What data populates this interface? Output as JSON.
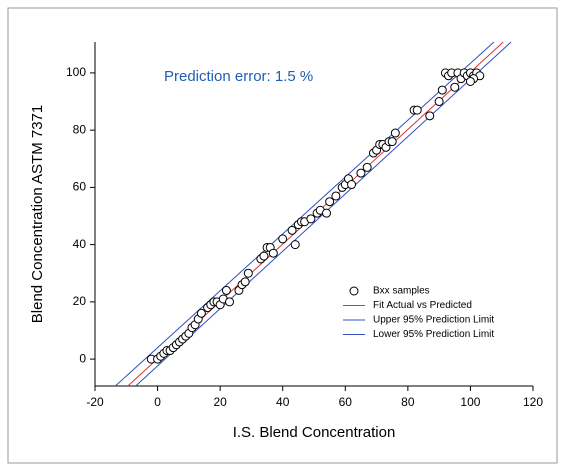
{
  "chart_data": {
    "type": "scatter",
    "annotation": "Prediction error:  1.5 %",
    "xlabel": "I.S. Blend Concentration",
    "ylabel": "Blend Concentration ASTM 7371",
    "xlim": [
      -20,
      120
    ],
    "xticks": [
      -20,
      0,
      20,
      40,
      60,
      80,
      100,
      120
    ],
    "ylim": [
      -9.4,
      110.8
    ],
    "yticks": [
      0,
      20,
      40,
      60,
      80,
      100
    ],
    "legend": "lower right",
    "series": [
      {
        "name": "Bxx samples",
        "kind": "markers",
        "color": "#000000",
        "x": [
          -2,
          0,
          1,
          2,
          3,
          4,
          5,
          6,
          7,
          8,
          9,
          10,
          11,
          12,
          13,
          14,
          16,
          17,
          18,
          19,
          20,
          21,
          22,
          23,
          26,
          27,
          28,
          29,
          33,
          34,
          35,
          36,
          37,
          40,
          43,
          44,
          45,
          46,
          47,
          49,
          51,
          52,
          54,
          55,
          57,
          59,
          60,
          61,
          62,
          65,
          67,
          69,
          70,
          71,
          72,
          73,
          74,
          75,
          76,
          82,
          83,
          87,
          90,
          91,
          92,
          93,
          94,
          95,
          96,
          97,
          98,
          99,
          100,
          101,
          102,
          103,
          101,
          100
        ],
        "y": [
          0,
          0,
          1,
          2,
          3,
          3,
          4,
          5,
          6,
          7,
          8,
          9,
          11,
          12,
          14,
          16,
          18,
          19,
          20,
          20,
          19,
          21,
          24,
          20,
          24,
          26,
          27,
          30,
          35,
          36,
          39,
          39,
          37,
          42,
          45,
          40,
          47,
          48,
          48,
          49,
          51,
          52,
          51,
          55,
          57,
          60,
          61,
          63,
          61,
          65,
          67,
          72,
          73,
          75,
          75,
          74,
          76,
          76,
          79,
          87,
          87,
          85,
          90,
          94,
          100,
          99,
          100,
          95,
          100,
          98,
          100,
          99,
          100,
          99,
          100,
          99,
          98,
          97
        ]
      },
      {
        "name": "Fit Actual vs Predicted",
        "kind": "line",
        "color": "#e03030",
        "x": [
          -9.5,
          110.5
        ],
        "y": [
          -9.4,
          110.8
        ]
      },
      {
        "name": "Upper 95% Prediction Limit",
        "kind": "line",
        "color": "#3050c0",
        "x": [
          -13.5,
          107.5
        ],
        "y": [
          -9.4,
          110.8
        ]
      },
      {
        "name": "Lower 95% Prediction Limit",
        "kind": "line",
        "color": "#3050c0",
        "x": [
          -7,
          113
        ],
        "y": [
          -9.4,
          110.8
        ]
      }
    ]
  }
}
